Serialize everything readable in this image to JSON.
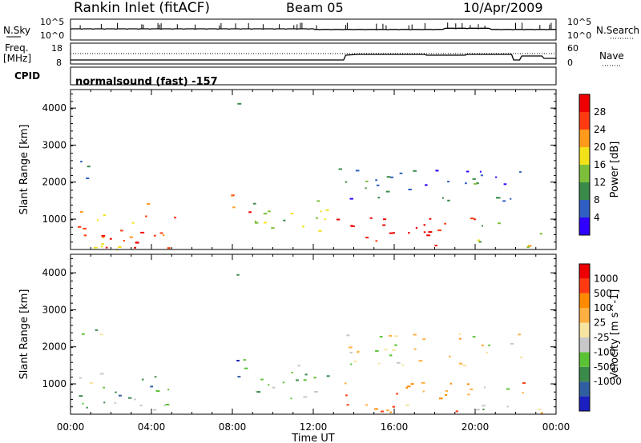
{
  "header": {
    "title_left": "Rankin Inlet (fitACF)",
    "title_center": "Beam 05",
    "title_right": "10/Apr/2009"
  },
  "noise_panel": {
    "left_label": "N.Sky",
    "left_ticks": [
      "10^5",
      "10^0"
    ],
    "right_label": "N.Search",
    "right_ticks": [
      "10^5",
      "10^0"
    ]
  },
  "freq_panel": {
    "left_label_line1": "Freq.",
    "left_label_line2": "[MHz]",
    "left_ticks": [
      "18",
      "8"
    ],
    "right_label": "Nave",
    "right_ticks": [
      "60",
      "0"
    ]
  },
  "cpid_panel": {
    "label": "CPID",
    "text": "normalsound (fast) -157"
  },
  "chart_data": [
    {
      "type": "heatmap",
      "panel": "power",
      "ylabel": "Slant Range [km]",
      "ylim": [
        180,
        4500
      ],
      "yticks": [
        "1000",
        "2000",
        "3000",
        "4000"
      ],
      "colorbar_label": "Power [dB]",
      "colorbar_ticks": [
        "4",
        "8",
        "12",
        "16",
        "20",
        "24",
        "28"
      ],
      "colors": [
        "#2f00ff",
        "#2f5fc2",
        "#3a8a4a",
        "#7dbf3a",
        "#f2e21a",
        "#ff9a1a",
        "#ff3a10",
        "#ee0000"
      ],
      "regions": [
        {
          "t": [
            0.2,
            5.2
          ],
          "r": [
            180,
            1300
          ],
          "level": 0.7
        },
        {
          "t": [
            1.5,
            5.0
          ],
          "r": [
            180,
            700
          ],
          "level": 0.95
        },
        {
          "t": [
            0.2,
            1.5
          ],
          "r": [
            2000,
            2600
          ],
          "level": 0.25
        },
        {
          "t": [
            3.4,
            3.8
          ],
          "r": [
            900,
            1600
          ],
          "level": 0.75
        },
        {
          "t": [
            7.9,
            9.0
          ],
          "r": [
            800,
            1700
          ],
          "level": 0.8
        },
        {
          "t": [
            9.0,
            13.0
          ],
          "r": [
            600,
            1600
          ],
          "level": 0.45
        },
        {
          "t": [
            13.0,
            20.0
          ],
          "r": [
            300,
            1100
          ],
          "level": 0.95
        },
        {
          "t": [
            13.0,
            22.5
          ],
          "r": [
            1500,
            2400
          ],
          "level": 0.25
        },
        {
          "t": [
            20.0,
            21.5
          ],
          "r": [
            400,
            1000
          ],
          "level": 0.5
        },
        {
          "t": [
            22.3,
            23.3
          ],
          "r": [
            200,
            1100
          ],
          "level": 0.6
        },
        {
          "t": [
            8.0,
            8.4
          ],
          "r": [
            3800,
            4200
          ],
          "level": 0.4
        }
      ]
    },
    {
      "type": "heatmap",
      "panel": "velocity",
      "ylabel": "Slant Range [km]",
      "xlabel": "Time UT",
      "xticks": [
        "00:00",
        "04:00",
        "08:00",
        "12:00",
        "16:00",
        "20:00",
        "00:00"
      ],
      "ylim": [
        180,
        4500
      ],
      "yticks": [
        "1000",
        "2000",
        "3000",
        "4000"
      ],
      "colorbar_label": "Velocity [m s^-1]",
      "colorbar_ticks": [
        "1000",
        "500",
        "100",
        "25",
        "-25",
        "-100",
        "-500",
        "-1000"
      ],
      "colors": [
        "#1c1fc0",
        "#2f5fa0",
        "#3a8a4a",
        "#5cc235",
        "#c8c8c8",
        "#f7e4a0",
        "#ffb040",
        "#ff8a00",
        "#ff3a10",
        "#ee0000"
      ],
      "regions": [
        {
          "t": [
            0.2,
            5.2
          ],
          "r": [
            180,
            1300
          ],
          "level": 0.35
        },
        {
          "t": [
            0.2,
            1.5
          ],
          "r": [
            2000,
            2600
          ],
          "level": 0.45
        },
        {
          "t": [
            7.9,
            9.0
          ],
          "r": [
            800,
            1700
          ],
          "level": 0.2
        },
        {
          "t": [
            9.0,
            13.0
          ],
          "r": [
            600,
            1600
          ],
          "level": 0.3
        },
        {
          "t": [
            13.0,
            20.0
          ],
          "r": [
            250,
            1100
          ],
          "level": 0.75
        },
        {
          "t": [
            13.0,
            22.5
          ],
          "r": [
            1500,
            2400
          ],
          "level": 0.55
        },
        {
          "t": [
            20.0,
            22.0
          ],
          "r": [
            300,
            1000
          ],
          "level": 0.4
        },
        {
          "t": [
            22.3,
            23.3
          ],
          "r": [
            200,
            1100
          ],
          "level": 0.72
        },
        {
          "t": [
            8.0,
            8.4
          ],
          "r": [
            3800,
            4200
          ],
          "level": 0.3
        }
      ]
    }
  ]
}
